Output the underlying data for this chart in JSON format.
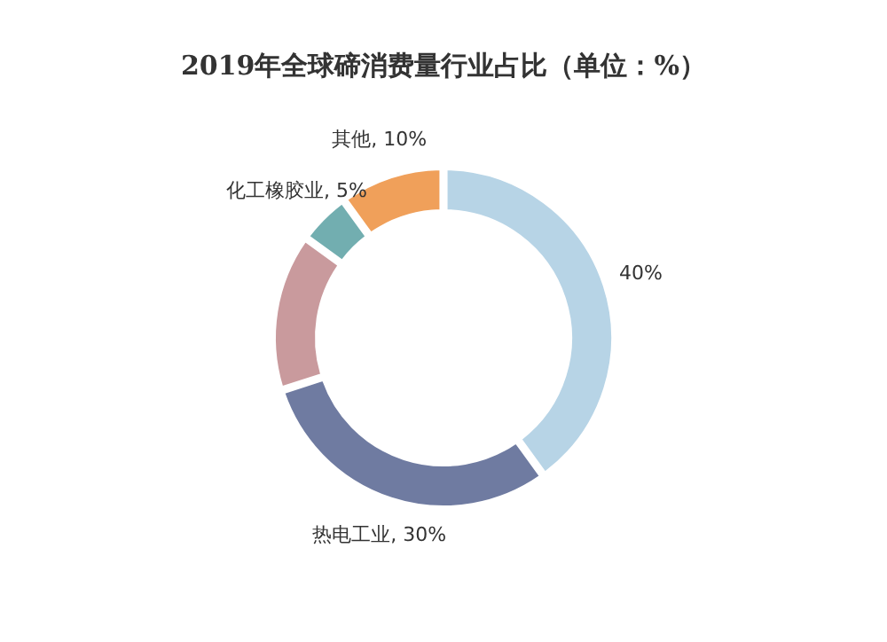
{
  "chart_data": {
    "type": "donut",
    "title": "2019年全球碲消费量行业占比（单位：%）",
    "categories": [
      null,
      "热电工业",
      null,
      "化工橡胶业",
      "其他"
    ],
    "values": [
      40,
      30,
      15,
      5,
      10
    ],
    "colors": [
      "#b7d4e6",
      "#6f7ba1",
      "#c99a9d",
      "#72aeb0",
      "#f0a05a"
    ],
    "value_labels": [
      "40%",
      "30%",
      null,
      "5%",
      "10%"
    ],
    "legend": false
  }
}
